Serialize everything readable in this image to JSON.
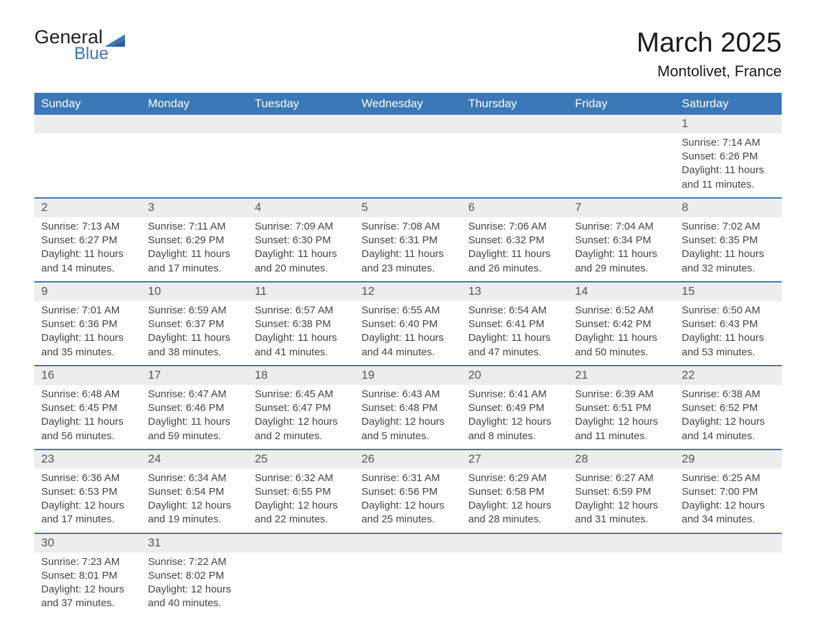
{
  "logo": {
    "text1": "General",
    "text2": "Blue",
    "accent": "#3b78b8"
  },
  "title": "March 2025",
  "location": "Montolivet, France",
  "colors": {
    "header_bg": "#3b78b8",
    "header_text": "#ffffff",
    "daynum_bg": "#ededed",
    "row_border": "#3b78b8",
    "body_text": "#444444",
    "title_text": "#1a1a1a"
  },
  "typography": {
    "title_fontsize": 40,
    "location_fontsize": 22,
    "header_fontsize": 17,
    "cell_fontsize": 15
  },
  "weekdays": [
    "Sunday",
    "Monday",
    "Tuesday",
    "Wednesday",
    "Thursday",
    "Friday",
    "Saturday"
  ],
  "weeks": [
    [
      null,
      null,
      null,
      null,
      null,
      null,
      {
        "d": "1",
        "sr": "Sunrise: 7:14 AM",
        "ss": "Sunset: 6:26 PM",
        "dl1": "Daylight: 11 hours",
        "dl2": "and 11 minutes."
      }
    ],
    [
      {
        "d": "2",
        "sr": "Sunrise: 7:13 AM",
        "ss": "Sunset: 6:27 PM",
        "dl1": "Daylight: 11 hours",
        "dl2": "and 14 minutes."
      },
      {
        "d": "3",
        "sr": "Sunrise: 7:11 AM",
        "ss": "Sunset: 6:29 PM",
        "dl1": "Daylight: 11 hours",
        "dl2": "and 17 minutes."
      },
      {
        "d": "4",
        "sr": "Sunrise: 7:09 AM",
        "ss": "Sunset: 6:30 PM",
        "dl1": "Daylight: 11 hours",
        "dl2": "and 20 minutes."
      },
      {
        "d": "5",
        "sr": "Sunrise: 7:08 AM",
        "ss": "Sunset: 6:31 PM",
        "dl1": "Daylight: 11 hours",
        "dl2": "and 23 minutes."
      },
      {
        "d": "6",
        "sr": "Sunrise: 7:06 AM",
        "ss": "Sunset: 6:32 PM",
        "dl1": "Daylight: 11 hours",
        "dl2": "and 26 minutes."
      },
      {
        "d": "7",
        "sr": "Sunrise: 7:04 AM",
        "ss": "Sunset: 6:34 PM",
        "dl1": "Daylight: 11 hours",
        "dl2": "and 29 minutes."
      },
      {
        "d": "8",
        "sr": "Sunrise: 7:02 AM",
        "ss": "Sunset: 6:35 PM",
        "dl1": "Daylight: 11 hours",
        "dl2": "and 32 minutes."
      }
    ],
    [
      {
        "d": "9",
        "sr": "Sunrise: 7:01 AM",
        "ss": "Sunset: 6:36 PM",
        "dl1": "Daylight: 11 hours",
        "dl2": "and 35 minutes."
      },
      {
        "d": "10",
        "sr": "Sunrise: 6:59 AM",
        "ss": "Sunset: 6:37 PM",
        "dl1": "Daylight: 11 hours",
        "dl2": "and 38 minutes."
      },
      {
        "d": "11",
        "sr": "Sunrise: 6:57 AM",
        "ss": "Sunset: 6:38 PM",
        "dl1": "Daylight: 11 hours",
        "dl2": "and 41 minutes."
      },
      {
        "d": "12",
        "sr": "Sunrise: 6:55 AM",
        "ss": "Sunset: 6:40 PM",
        "dl1": "Daylight: 11 hours",
        "dl2": "and 44 minutes."
      },
      {
        "d": "13",
        "sr": "Sunrise: 6:54 AM",
        "ss": "Sunset: 6:41 PM",
        "dl1": "Daylight: 11 hours",
        "dl2": "and 47 minutes."
      },
      {
        "d": "14",
        "sr": "Sunrise: 6:52 AM",
        "ss": "Sunset: 6:42 PM",
        "dl1": "Daylight: 11 hours",
        "dl2": "and 50 minutes."
      },
      {
        "d": "15",
        "sr": "Sunrise: 6:50 AM",
        "ss": "Sunset: 6:43 PM",
        "dl1": "Daylight: 11 hours",
        "dl2": "and 53 minutes."
      }
    ],
    [
      {
        "d": "16",
        "sr": "Sunrise: 6:48 AM",
        "ss": "Sunset: 6:45 PM",
        "dl1": "Daylight: 11 hours",
        "dl2": "and 56 minutes."
      },
      {
        "d": "17",
        "sr": "Sunrise: 6:47 AM",
        "ss": "Sunset: 6:46 PM",
        "dl1": "Daylight: 11 hours",
        "dl2": "and 59 minutes."
      },
      {
        "d": "18",
        "sr": "Sunrise: 6:45 AM",
        "ss": "Sunset: 6:47 PM",
        "dl1": "Daylight: 12 hours",
        "dl2": "and 2 minutes."
      },
      {
        "d": "19",
        "sr": "Sunrise: 6:43 AM",
        "ss": "Sunset: 6:48 PM",
        "dl1": "Daylight: 12 hours",
        "dl2": "and 5 minutes."
      },
      {
        "d": "20",
        "sr": "Sunrise: 6:41 AM",
        "ss": "Sunset: 6:49 PM",
        "dl1": "Daylight: 12 hours",
        "dl2": "and 8 minutes."
      },
      {
        "d": "21",
        "sr": "Sunrise: 6:39 AM",
        "ss": "Sunset: 6:51 PM",
        "dl1": "Daylight: 12 hours",
        "dl2": "and 11 minutes."
      },
      {
        "d": "22",
        "sr": "Sunrise: 6:38 AM",
        "ss": "Sunset: 6:52 PM",
        "dl1": "Daylight: 12 hours",
        "dl2": "and 14 minutes."
      }
    ],
    [
      {
        "d": "23",
        "sr": "Sunrise: 6:36 AM",
        "ss": "Sunset: 6:53 PM",
        "dl1": "Daylight: 12 hours",
        "dl2": "and 17 minutes."
      },
      {
        "d": "24",
        "sr": "Sunrise: 6:34 AM",
        "ss": "Sunset: 6:54 PM",
        "dl1": "Daylight: 12 hours",
        "dl2": "and 19 minutes."
      },
      {
        "d": "25",
        "sr": "Sunrise: 6:32 AM",
        "ss": "Sunset: 6:55 PM",
        "dl1": "Daylight: 12 hours",
        "dl2": "and 22 minutes."
      },
      {
        "d": "26",
        "sr": "Sunrise: 6:31 AM",
        "ss": "Sunset: 6:56 PM",
        "dl1": "Daylight: 12 hours",
        "dl2": "and 25 minutes."
      },
      {
        "d": "27",
        "sr": "Sunrise: 6:29 AM",
        "ss": "Sunset: 6:58 PM",
        "dl1": "Daylight: 12 hours",
        "dl2": "and 28 minutes."
      },
      {
        "d": "28",
        "sr": "Sunrise: 6:27 AM",
        "ss": "Sunset: 6:59 PM",
        "dl1": "Daylight: 12 hours",
        "dl2": "and 31 minutes."
      },
      {
        "d": "29",
        "sr": "Sunrise: 6:25 AM",
        "ss": "Sunset: 7:00 PM",
        "dl1": "Daylight: 12 hours",
        "dl2": "and 34 minutes."
      }
    ],
    [
      {
        "d": "30",
        "sr": "Sunrise: 7:23 AM",
        "ss": "Sunset: 8:01 PM",
        "dl1": "Daylight: 12 hours",
        "dl2": "and 37 minutes."
      },
      {
        "d": "31",
        "sr": "Sunrise: 7:22 AM",
        "ss": "Sunset: 8:02 PM",
        "dl1": "Daylight: 12 hours",
        "dl2": "and 40 minutes."
      },
      null,
      null,
      null,
      null,
      null
    ]
  ]
}
